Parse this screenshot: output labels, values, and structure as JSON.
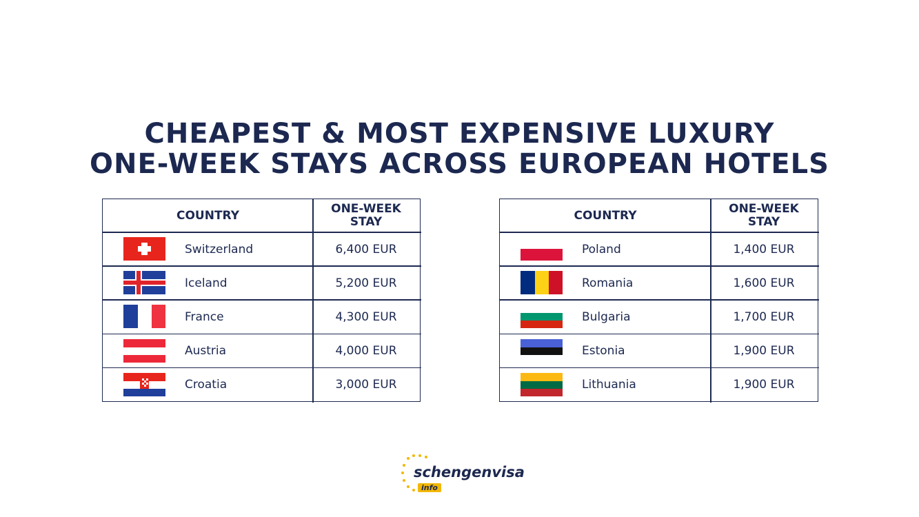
{
  "title": {
    "line1": "CHEAPEST & MOST EXPENSIVE LUXURY",
    "line2": "ONE-WEEK STAYS ACROSS EUROPEAN HOTELS"
  },
  "tables": [
    {
      "header": [
        "COUNTRY",
        "ONE-WEEK STAY"
      ],
      "rows": [
        [
          "Switzerland",
          "6,400 EUR"
        ],
        [
          "Iceland",
          "5,200 EUR"
        ],
        [
          "France",
          "4,300 EUR"
        ],
        [
          "Austria",
          "4,000 EUR"
        ],
        [
          "Croatia",
          "3,000 EUR"
        ]
      ]
    },
    {
      "header": [
        "COUNTRY",
        "ONE-WEEK STAY"
      ],
      "rows": [
        [
          "Poland",
          "1,400 EUR"
        ],
        [
          "Romania",
          "1,600 EUR"
        ],
        [
          "Bulgaria",
          "1,700 EUR"
        ],
        [
          "Estonia",
          "1,900 EUR"
        ],
        [
          "Lithuania",
          "1,900 EUR"
        ]
      ]
    }
  ],
  "logo": {
    "name": "schengenvisa",
    "tag": "info"
  }
}
